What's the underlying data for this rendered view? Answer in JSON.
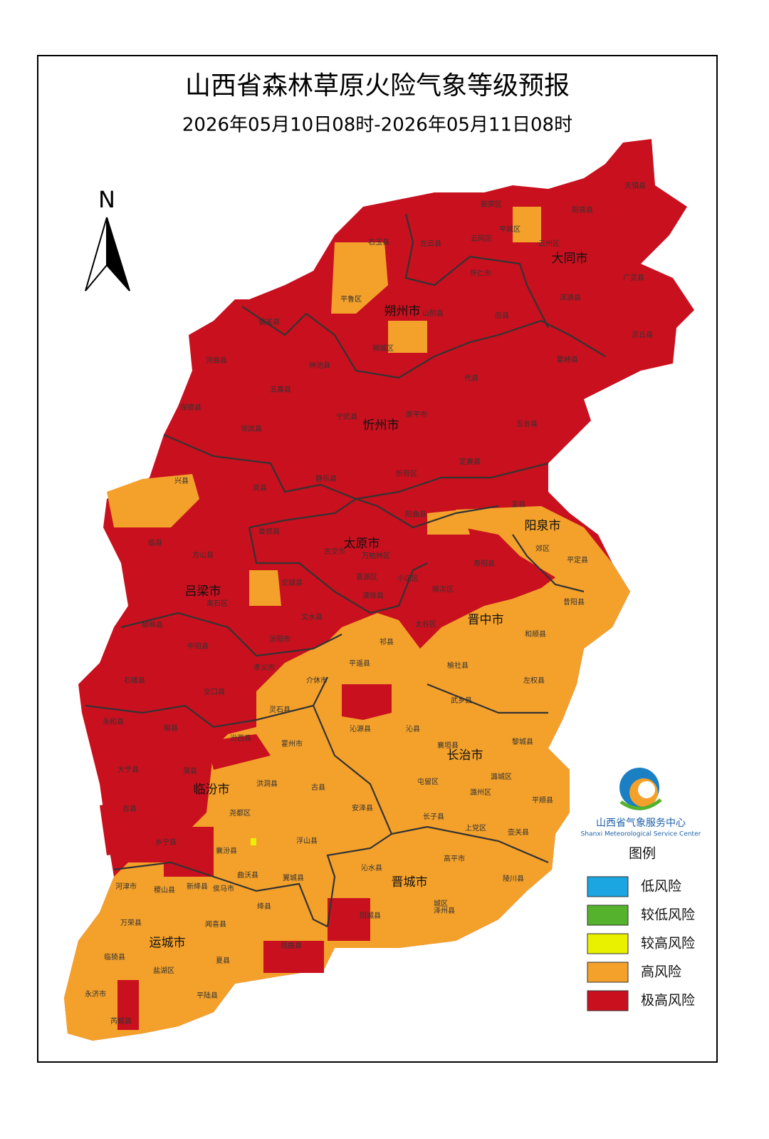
{
  "header": {
    "title": "山西省森林草原火险气象等级预报",
    "subtitle": "2026年05月10日08时-2026年05月11日08时"
  },
  "north": "N",
  "cities": [
    "大同市",
    "朔州市",
    "忻州市",
    "阳泉市",
    "太原市",
    "吕梁市",
    "晋中市",
    "长治市",
    "临汾市",
    "晋城市",
    "运城市"
  ],
  "counties": [
    "天镇县",
    "新荣区",
    "阳高县",
    "右玉县",
    "左云县",
    "云冈区",
    "平城区",
    "云州区",
    "广灵县",
    "平鲁区",
    "怀仁市",
    "浑源县",
    "山阴县",
    "应县",
    "偏关县",
    "灵丘县",
    "朔城区",
    "河曲县",
    "神池县",
    "繁峙县",
    "代县",
    "五寨县",
    "保德县",
    "宁武县",
    "原平市",
    "五台县",
    "岢岚县",
    "兴县",
    "静乐县",
    "忻府区",
    "定襄县",
    "岚县",
    "盂县",
    "阳曲县",
    "临县",
    "娄烦县",
    "古交市",
    "方山县",
    "郊区",
    "平定县",
    "寿阳县",
    "交城县",
    "离石区",
    "榆次区",
    "清徐县",
    "昔阳县",
    "文水县",
    "柳林县",
    "太谷区",
    "中阳县",
    "汾阳市",
    "和顺县",
    "祁县",
    "平遥县",
    "孝义市",
    "榆社县",
    "介休市",
    "石楼县",
    "交口县",
    "左权县",
    "武乡县",
    "灵石县",
    "永和县",
    "沁源县",
    "沁县",
    "隰县",
    "汾西县",
    "黎城县",
    "霍州市",
    "襄垣县",
    "大宁县",
    "蒲县",
    "屯留区",
    "潞城区",
    "洪洞县",
    "古县",
    "潞州区",
    "安泽县",
    "平顺县",
    "吉县",
    "尧都区",
    "长子县",
    "上党区",
    "壶关县",
    "乡宁县",
    "襄汾县",
    "浮山县",
    "高平市",
    "沁水县",
    "陵川县",
    "曲沃县",
    "翼城县",
    "河津市",
    "稷山县",
    "新绛县",
    "侯马市",
    "绛县",
    "城区",
    "泽州县",
    "阳城县",
    "万荣县",
    "闻喜县",
    "垣曲县",
    "临猗县",
    "夏县",
    "盐湖区",
    "永济市",
    "平陆县",
    "芮城县",
    "晋源区",
    "小店区",
    "万柏林区"
  ],
  "legend": {
    "title": "图例",
    "items": [
      {
        "label": "低风险",
        "color": "#1ba5e1"
      },
      {
        "label": "较低风险",
        "color": "#55b22c"
      },
      {
        "label": "较高风险",
        "color": "#e9f100"
      },
      {
        "label": "高风险",
        "color": "#f3a12b"
      },
      {
        "label": "极高风险",
        "color": "#c8101e"
      }
    ]
  },
  "org": {
    "name_cn": "山西省气象服务中心",
    "name_en": "Shanxi Meteorological Service Center"
  }
}
